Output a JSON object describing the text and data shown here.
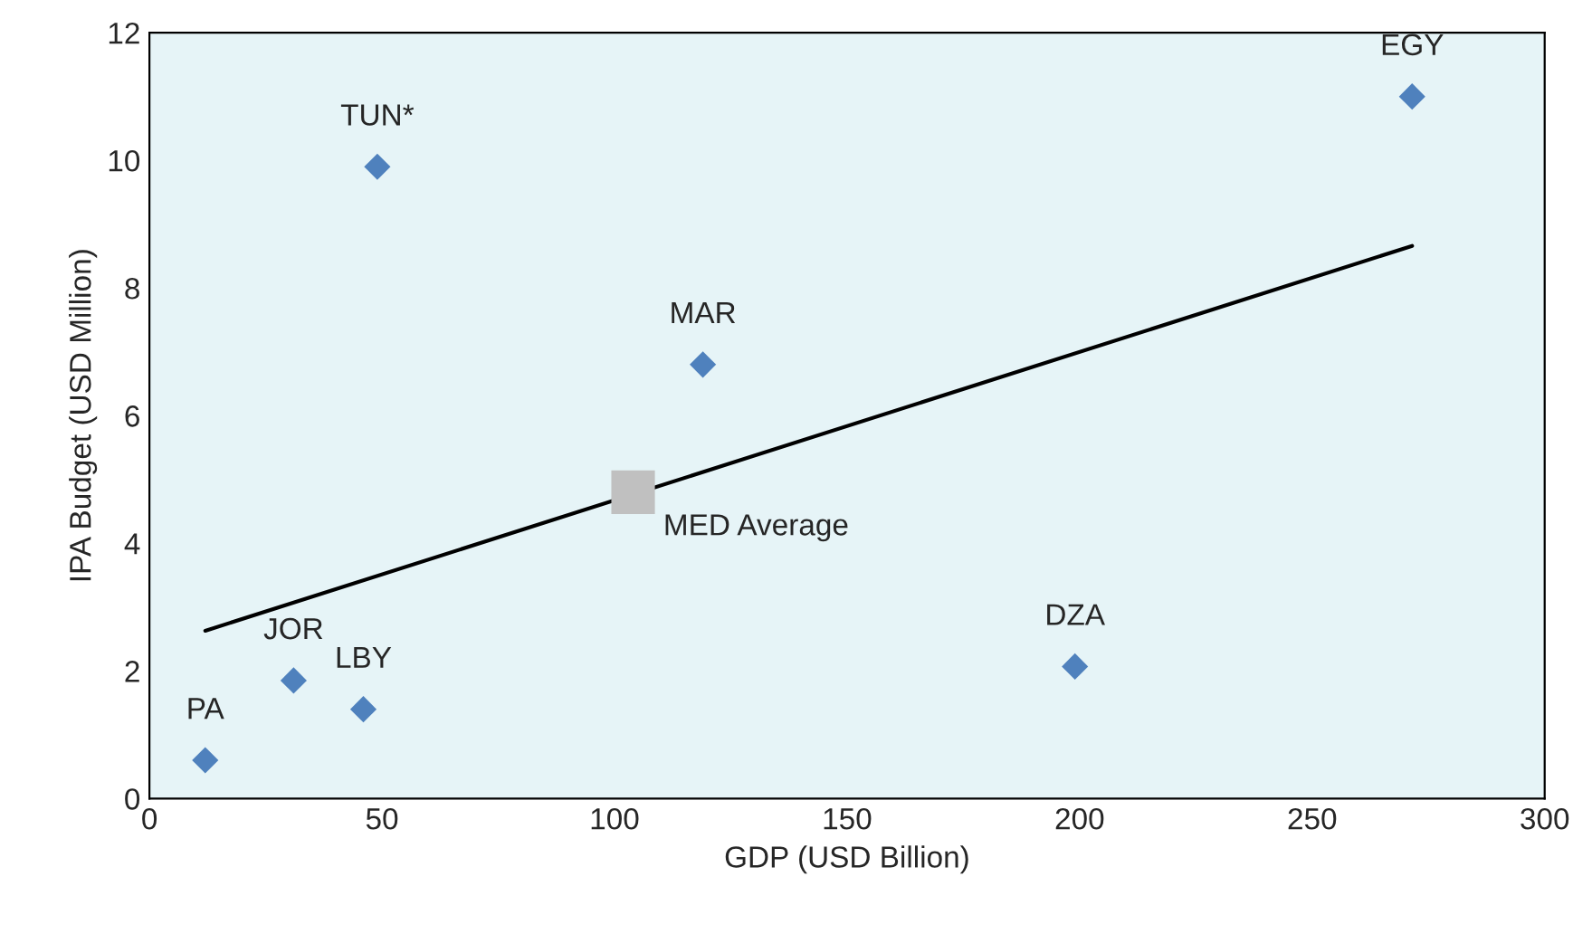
{
  "chart_data": {
    "type": "scatter",
    "xlabel": "GDP (USD Billion)",
    "ylabel": "IPA Budget (USD Million)",
    "xlim": [
      0,
      300
    ],
    "xticks": [
      0,
      50,
      100,
      150,
      200,
      250,
      300
    ],
    "ylim": [
      0,
      12
    ],
    "yticks": [
      0,
      2,
      4,
      6,
      8,
      10,
      12
    ],
    "grid": false,
    "series": [
      {
        "marker": "diamond",
        "color": "#4f81bd",
        "x": [
          12,
          31,
          46,
          49,
          119,
          199,
          271.5
        ],
        "values": [
          0.6,
          1.85,
          1.4,
          9.9,
          6.8,
          2.07,
          11.0
        ]
      },
      {
        "marker": "square",
        "name": "MED Average",
        "color": "#c0c0c0",
        "x": [
          104
        ],
        "values": [
          4.8
        ]
      },
      {
        "type": "line",
        "color": "#000000",
        "x": [
          12,
          271.5
        ],
        "values": [
          2.63,
          8.66
        ]
      }
    ],
    "annotations": [
      {
        "text": "PA",
        "x": 12,
        "y": 0.6
      },
      {
        "text": "JOR",
        "x": 31,
        "y": 1.85
      },
      {
        "text": "LBY",
        "x": 46,
        "y": 1.4
      },
      {
        "text": "TUN*",
        "x": 49,
        "y": 9.9
      },
      {
        "text": "MAR",
        "x": 119,
        "y": 6.8
      },
      {
        "text": "DZA",
        "x": 199,
        "y": 2.07
      },
      {
        "text": "EGY",
        "x": 271.5,
        "y": 11.0
      }
    ]
  }
}
